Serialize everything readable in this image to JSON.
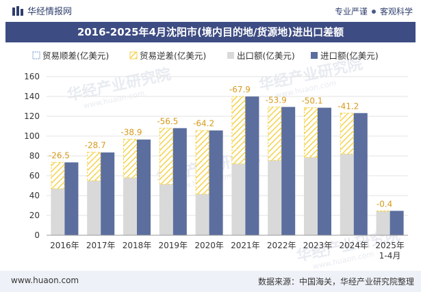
{
  "header": {
    "brand": "华经情报网",
    "tag_left": "专业严谨",
    "tag_right": "客观科学"
  },
  "title": "2016-2025年4月沈阳市(境内目的地/货源地)进出口差额",
  "watermark": "华经产业研究院",
  "watermark_url": "www.huaon.com",
  "footer": {
    "url": "www.huaon.com",
    "source": "数据来源：中国海关，华经产业研究院整理"
  },
  "colors": {
    "surplus": "#9fb8e0",
    "deficit": "#f5d24a",
    "export": "#d9d9d9",
    "import": "#5b6e9e",
    "title_bg": "#3d4c82"
  },
  "chart_data": {
    "type": "bar",
    "categories": [
      "2016年",
      "2017年",
      "2018年",
      "2019年",
      "2020年",
      "2021年",
      "2022年",
      "2023年",
      "2024年",
      "2025年\n1-4月"
    ],
    "series": [
      {
        "name": "贸易顺差(亿美元)",
        "values": [
          0,
          0,
          0,
          0,
          0,
          0,
          0,
          0,
          0,
          0
        ]
      },
      {
        "name": "贸易逆差(亿美元)",
        "values": [
          -26.5,
          -28.7,
          -38.9,
          -56.5,
          -64.2,
          -67.9,
          -53.9,
          -50.1,
          -41.2,
          -0.4
        ]
      },
      {
        "name": "出口额(亿美元)",
        "values": [
          47,
          55,
          58,
          51.5,
          41.5,
          72,
          75.5,
          78.5,
          82,
          24.2
        ]
      },
      {
        "name": "进口额(亿美元)",
        "values": [
          73.5,
          83.5,
          96.5,
          108,
          105.7,
          139.9,
          129.4,
          128.6,
          123.2,
          24.6
        ]
      }
    ],
    "labels": [
      "-26.5",
      "-28.7",
      "-38.9",
      "-56.5",
      "-64.2",
      "-67.9",
      "-53.9",
      "-50.1",
      "-41.2",
      "-0.4"
    ],
    "ylim": [
      0,
      160
    ],
    "yticks": [
      0,
      20,
      40,
      60,
      80,
      100,
      120,
      140,
      160
    ],
    "grid": true,
    "legend": "top-left"
  }
}
